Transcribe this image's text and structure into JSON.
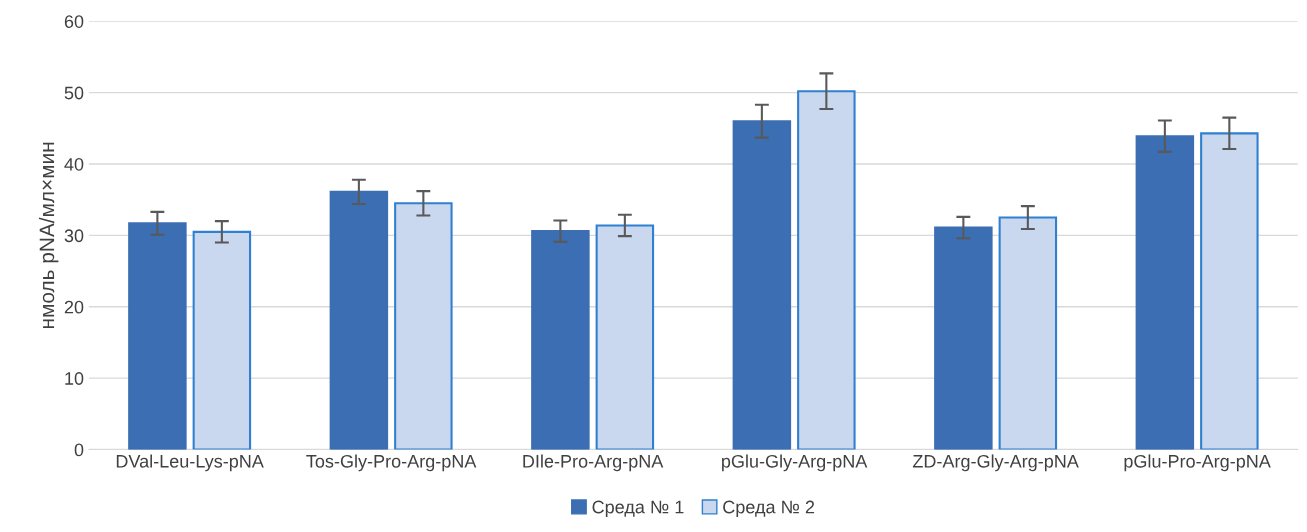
{
  "chart_data": {
    "type": "bar",
    "ylabel": "нмоль pNA/мл×мин",
    "categories": [
      "DVal-Leu-Lys-pNA",
      "Tos-Gly-Pro-Arg-pNA",
      "DIle-Pro-Arg-pNA",
      "pGlu-Gly-Arg-pNA",
      "ZD-Arg-Gly-Arg-pNA",
      "pGlu-Pro-Arg-pNA"
    ],
    "series": [
      {
        "name": "Среда № 1",
        "color": "#3b6eb2",
        "values": [
          31.7,
          36.1,
          30.6,
          46.0,
          31.1,
          43.9
        ],
        "errors": [
          1.6,
          1.7,
          1.5,
          2.3,
          1.5,
          2.2
        ]
      },
      {
        "name": "Среда № 2",
        "color": "#c9d7ef",
        "values": [
          30.5,
          34.5,
          31.4,
          50.2,
          32.5,
          44.3
        ],
        "errors": [
          1.5,
          1.7,
          1.5,
          2.5,
          1.6,
          2.2
        ]
      }
    ],
    "ylim": [
      0,
      60
    ],
    "yticks": [
      0,
      10,
      20,
      30,
      40,
      50,
      60
    ],
    "grid": "y",
    "legend": "bottom"
  }
}
